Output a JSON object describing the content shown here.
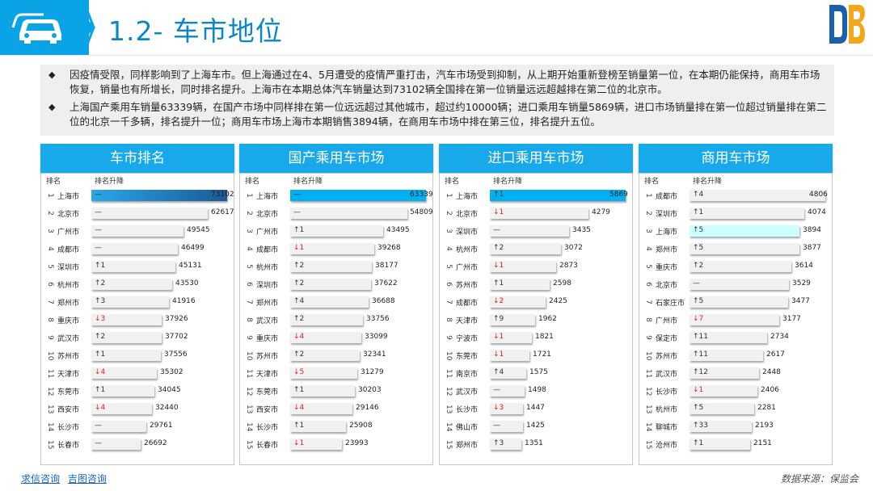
{
  "header": {
    "title": "1.2- 车市地位"
  },
  "intro": {
    "p1": "因疫情受限，同样影响到了上海车市。但上海通过在4、5月遭受的疫情严重打击，汽车市场受到抑制，从上期开始重新登榜至销量第一位，在本期仍能保持，商用车市场恢复，销量也有所增长，同时排名提升。上海市在本期总体汽车销量达到73102辆全国排在第一位销量远远超越排在第二位的北京市。",
    "p2": "上海国产乘用车销量63339辆，在国产市场中同样排在第一位远远超过其他城市，超过约10000辆；进口乘用车销量5869辆，进口市场销量排在第一位超过销量排在第二位的北京一千多辆，排名提升一位；商用车市场上海市本期销售3894辆，在商用车市场中排在第三位，排名提升五位。"
  },
  "footer": {
    "link1": "求信咨询",
    "link2": "吉图咨询",
    "source": "数据来源：保监会"
  },
  "colors": {
    "accent": "#17a9ea",
    "highlight_total": "#1a5a96",
    "highlight_domestic": "#00b0f0",
    "highlight_import": "#00b0f0",
    "highlight_commercial": "#ccffff",
    "bar": "#f1f1f1",
    "down": "#e02020"
  },
  "chart_data": [
    {
      "type": "bar",
      "title": "车市排名",
      "col_rank": "排名",
      "col_change": "排名升降",
      "rows": [
        {
          "rank": "1",
          "city": "上海市",
          "change": "—",
          "value": 73102
        },
        {
          "rank": "2",
          "city": "北京市",
          "change": "—",
          "value": 62617
        },
        {
          "rank": "3",
          "city": "广州市",
          "change": "—",
          "value": 49545
        },
        {
          "rank": "4",
          "city": "成都市",
          "change": "—",
          "value": 46499
        },
        {
          "rank": "5",
          "city": "深圳市",
          "change": "↑1",
          "value": 45131
        },
        {
          "rank": "6",
          "city": "杭州市",
          "change": "↑2",
          "value": 43530
        },
        {
          "rank": "7",
          "city": "郑州市",
          "change": "↑3",
          "value": 41916
        },
        {
          "rank": "8",
          "city": "重庆市",
          "change": "↓3",
          "value": 37926
        },
        {
          "rank": "9",
          "city": "武汉市",
          "change": "↑2",
          "value": 37702
        },
        {
          "rank": "10",
          "city": "苏州市",
          "change": "↑1",
          "value": 37556
        },
        {
          "rank": "11",
          "city": "天津市",
          "change": "↓4",
          "value": 35302
        },
        {
          "rank": "12",
          "city": "东莞市",
          "change": "↑1",
          "value": 34045
        },
        {
          "rank": "13",
          "city": "西安市",
          "change": "↓4",
          "value": 32440
        },
        {
          "rank": "14",
          "city": "长沙市",
          "change": "—",
          "value": 29761
        },
        {
          "rank": "15",
          "city": "长春市",
          "change": "—",
          "value": 26692
        }
      ]
    },
    {
      "type": "bar",
      "title": "国产乘用车市场",
      "col_rank": "排名",
      "col_change": "排名升降",
      "rows": [
        {
          "rank": "1",
          "city": "上海市",
          "change": "—",
          "value": 63339
        },
        {
          "rank": "2",
          "city": "北京市",
          "change": "—",
          "value": 54809
        },
        {
          "rank": "3",
          "city": "广州市",
          "change": "↑1",
          "value": 43495
        },
        {
          "rank": "4",
          "city": "成都市",
          "change": "↓1",
          "value": 39268
        },
        {
          "rank": "5",
          "city": "杭州市",
          "change": "↑2",
          "value": 38177
        },
        {
          "rank": "6",
          "city": "深圳市",
          "change": "↑2",
          "value": 37622
        },
        {
          "rank": "7",
          "city": "郑州市",
          "change": "↑4",
          "value": 36688
        },
        {
          "rank": "8",
          "city": "武汉市",
          "change": "↑2",
          "value": 33756
        },
        {
          "rank": "9",
          "city": "重庆市",
          "change": "↓4",
          "value": 33099
        },
        {
          "rank": "10",
          "city": "苏州市",
          "change": "↑2",
          "value": 32341
        },
        {
          "rank": "11",
          "city": "天津市",
          "change": "↓5",
          "value": 31279
        },
        {
          "rank": "12",
          "city": "东莞市",
          "change": "↑1",
          "value": 30203
        },
        {
          "rank": "13",
          "city": "西安市",
          "change": "↓4",
          "value": 29146
        },
        {
          "rank": "14",
          "city": "长沙市",
          "change": "↑1",
          "value": 25908
        },
        {
          "rank": "15",
          "city": "长春市",
          "change": "↓1",
          "value": 23993
        }
      ]
    },
    {
      "type": "bar",
      "title": "进口乘用车市场",
      "col_rank": "排名",
      "col_change": "排名升降",
      "rows": [
        {
          "rank": "1",
          "city": "上海市",
          "change": "↑1",
          "value": 5869
        },
        {
          "rank": "2",
          "city": "北京市",
          "change": "↓1",
          "value": 4279
        },
        {
          "rank": "3",
          "city": "深圳市",
          "change": "—",
          "value": 3435
        },
        {
          "rank": "4",
          "city": "杭州市",
          "change": "↑2",
          "value": 3072
        },
        {
          "rank": "5",
          "city": "广州市",
          "change": "↓1",
          "value": 2873
        },
        {
          "rank": "6",
          "city": "苏州市",
          "change": "↑1",
          "value": 2598
        },
        {
          "rank": "7",
          "city": "成都市",
          "change": "↓2",
          "value": 2425
        },
        {
          "rank": "8",
          "city": "天津市",
          "change": "↑9",
          "value": 1962
        },
        {
          "rank": "9",
          "city": "宁波市",
          "change": "↓1",
          "value": 1821
        },
        {
          "rank": "10",
          "city": "东莞市",
          "change": "↓1",
          "value": 1721
        },
        {
          "rank": "11",
          "city": "南京市",
          "change": "↑4",
          "value": 1575
        },
        {
          "rank": "12",
          "city": "武汉市",
          "change": "—",
          "value": 1498
        },
        {
          "rank": "13",
          "city": "长沙市",
          "change": "↓3",
          "value": 1447
        },
        {
          "rank": "14",
          "city": "佛山市",
          "change": "—",
          "value": 1425
        },
        {
          "rank": "15",
          "city": "郑州市",
          "change": "↑3",
          "value": 1351
        }
      ]
    },
    {
      "type": "bar",
      "title": "商用车市场",
      "col_rank": "排名",
      "col_change": "排名升降",
      "rows": [
        {
          "rank": "1",
          "city": "成都市",
          "change": "↑4",
          "value": 4806
        },
        {
          "rank": "2",
          "city": "深圳市",
          "change": "↑1",
          "value": 4074
        },
        {
          "rank": "3",
          "city": "上海市",
          "change": "↑5",
          "value": 3894
        },
        {
          "rank": "4",
          "city": "郑州市",
          "change": "↑5",
          "value": 3877
        },
        {
          "rank": "5",
          "city": "重庆市",
          "change": "↑2",
          "value": 3614
        },
        {
          "rank": "6",
          "city": "北京市",
          "change": "—",
          "value": 3529
        },
        {
          "rank": "7",
          "city": "石家庄市",
          "change": "↑5",
          "value": 3477
        },
        {
          "rank": "8",
          "city": "广州市",
          "change": "↓7",
          "value": 3177
        },
        {
          "rank": "9",
          "city": "保定市",
          "change": "↑11",
          "value": 2734
        },
        {
          "rank": "10",
          "city": "苏州市",
          "change": "↑11",
          "value": 2617
        },
        {
          "rank": "11",
          "city": "武汉市",
          "change": "↑12",
          "value": 2448
        },
        {
          "rank": "12",
          "city": "长沙市",
          "change": "↓1",
          "value": 2406
        },
        {
          "rank": "13",
          "city": "杭州市",
          "change": "↑5",
          "value": 2281
        },
        {
          "rank": "14",
          "city": "聊城市",
          "change": "↑33",
          "value": 2193
        },
        {
          "rank": "15",
          "city": "沧州市",
          "change": "↑1",
          "value": 2151
        }
      ]
    }
  ]
}
